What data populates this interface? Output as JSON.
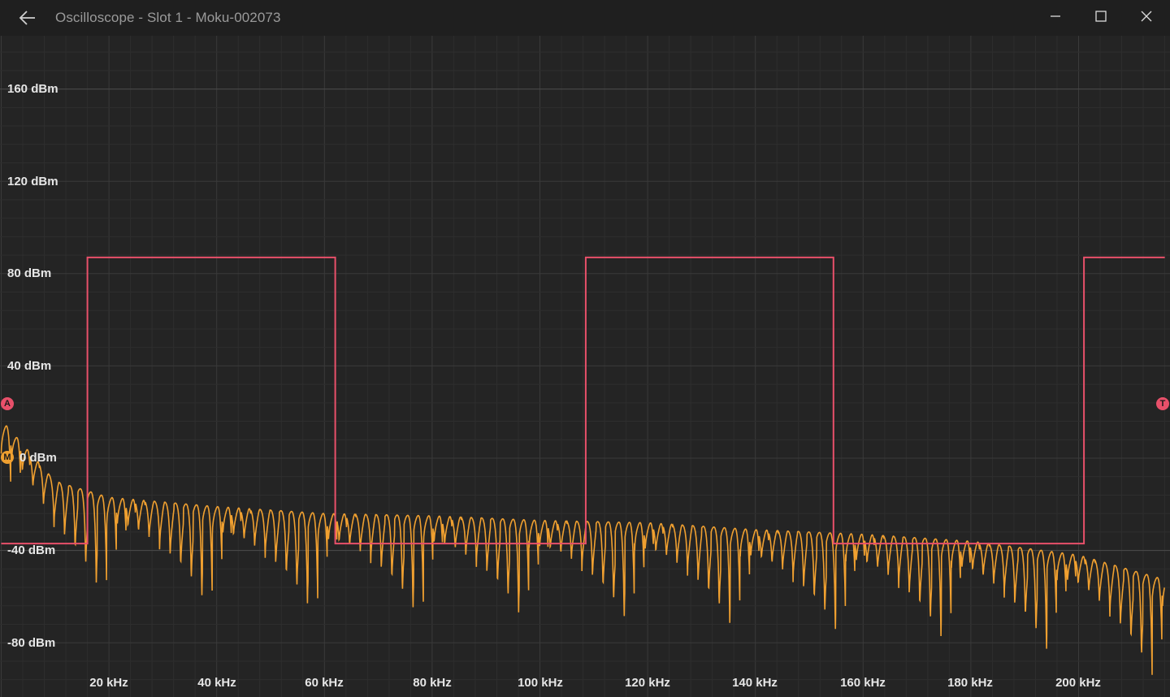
{
  "window": {
    "title": "Oscilloscope - Slot 1 - Moku-002073",
    "back_icon": "arrow-left-icon",
    "minimize_icon": "minimize-icon",
    "maximize_icon": "maximize-icon",
    "close_icon": "close-icon"
  },
  "colors": {
    "background": "#242424",
    "grid": "#333333",
    "channel_a": "#e8506a",
    "spectrum": "#f0a030"
  },
  "plot": {
    "y_labels": [
      "160 dBm",
      "120 dBm",
      "80 dBm",
      "40 dBm",
      "0 dBm",
      "-40 dBm",
      "-80 dBm"
    ],
    "x_labels": [
      "20 kHz",
      "40 kHz",
      "60 kHz",
      "80 kHz",
      "100 kHz",
      "120 kHz",
      "140 kHz",
      "160 kHz",
      "180 kHz",
      "200 kHz"
    ],
    "marker_a": "A",
    "marker_m": "M",
    "marker_t": "T"
  },
  "chart_data": {
    "type": "line",
    "xlabel": "",
    "ylabel": "",
    "xlim": [
      0,
      216
    ],
    "ylim": [
      -104,
      185
    ],
    "grid": true,
    "series": [
      {
        "color": "#e8506a",
        "x": [
          0,
          16,
          16,
          62,
          62,
          108.5,
          108.5,
          154.5,
          154.5,
          201,
          201,
          216
        ],
        "values": [
          -37,
          -37,
          87,
          87,
          -37,
          -37,
          87,
          87,
          -37,
          -37,
          87,
          87
        ]
      },
      {
        "color": "#f0a030",
        "peak_envelope_x": [
          1,
          10,
          20,
          40,
          60,
          80,
          100,
          120,
          140,
          160,
          180,
          200,
          215
        ],
        "peak_envelope_values": [
          14,
          -10,
          -17,
          -21,
          -24,
          -25,
          -27,
          -28,
          -31,
          -33,
          -36,
          -42,
          -52
        ]
      }
    ]
  }
}
